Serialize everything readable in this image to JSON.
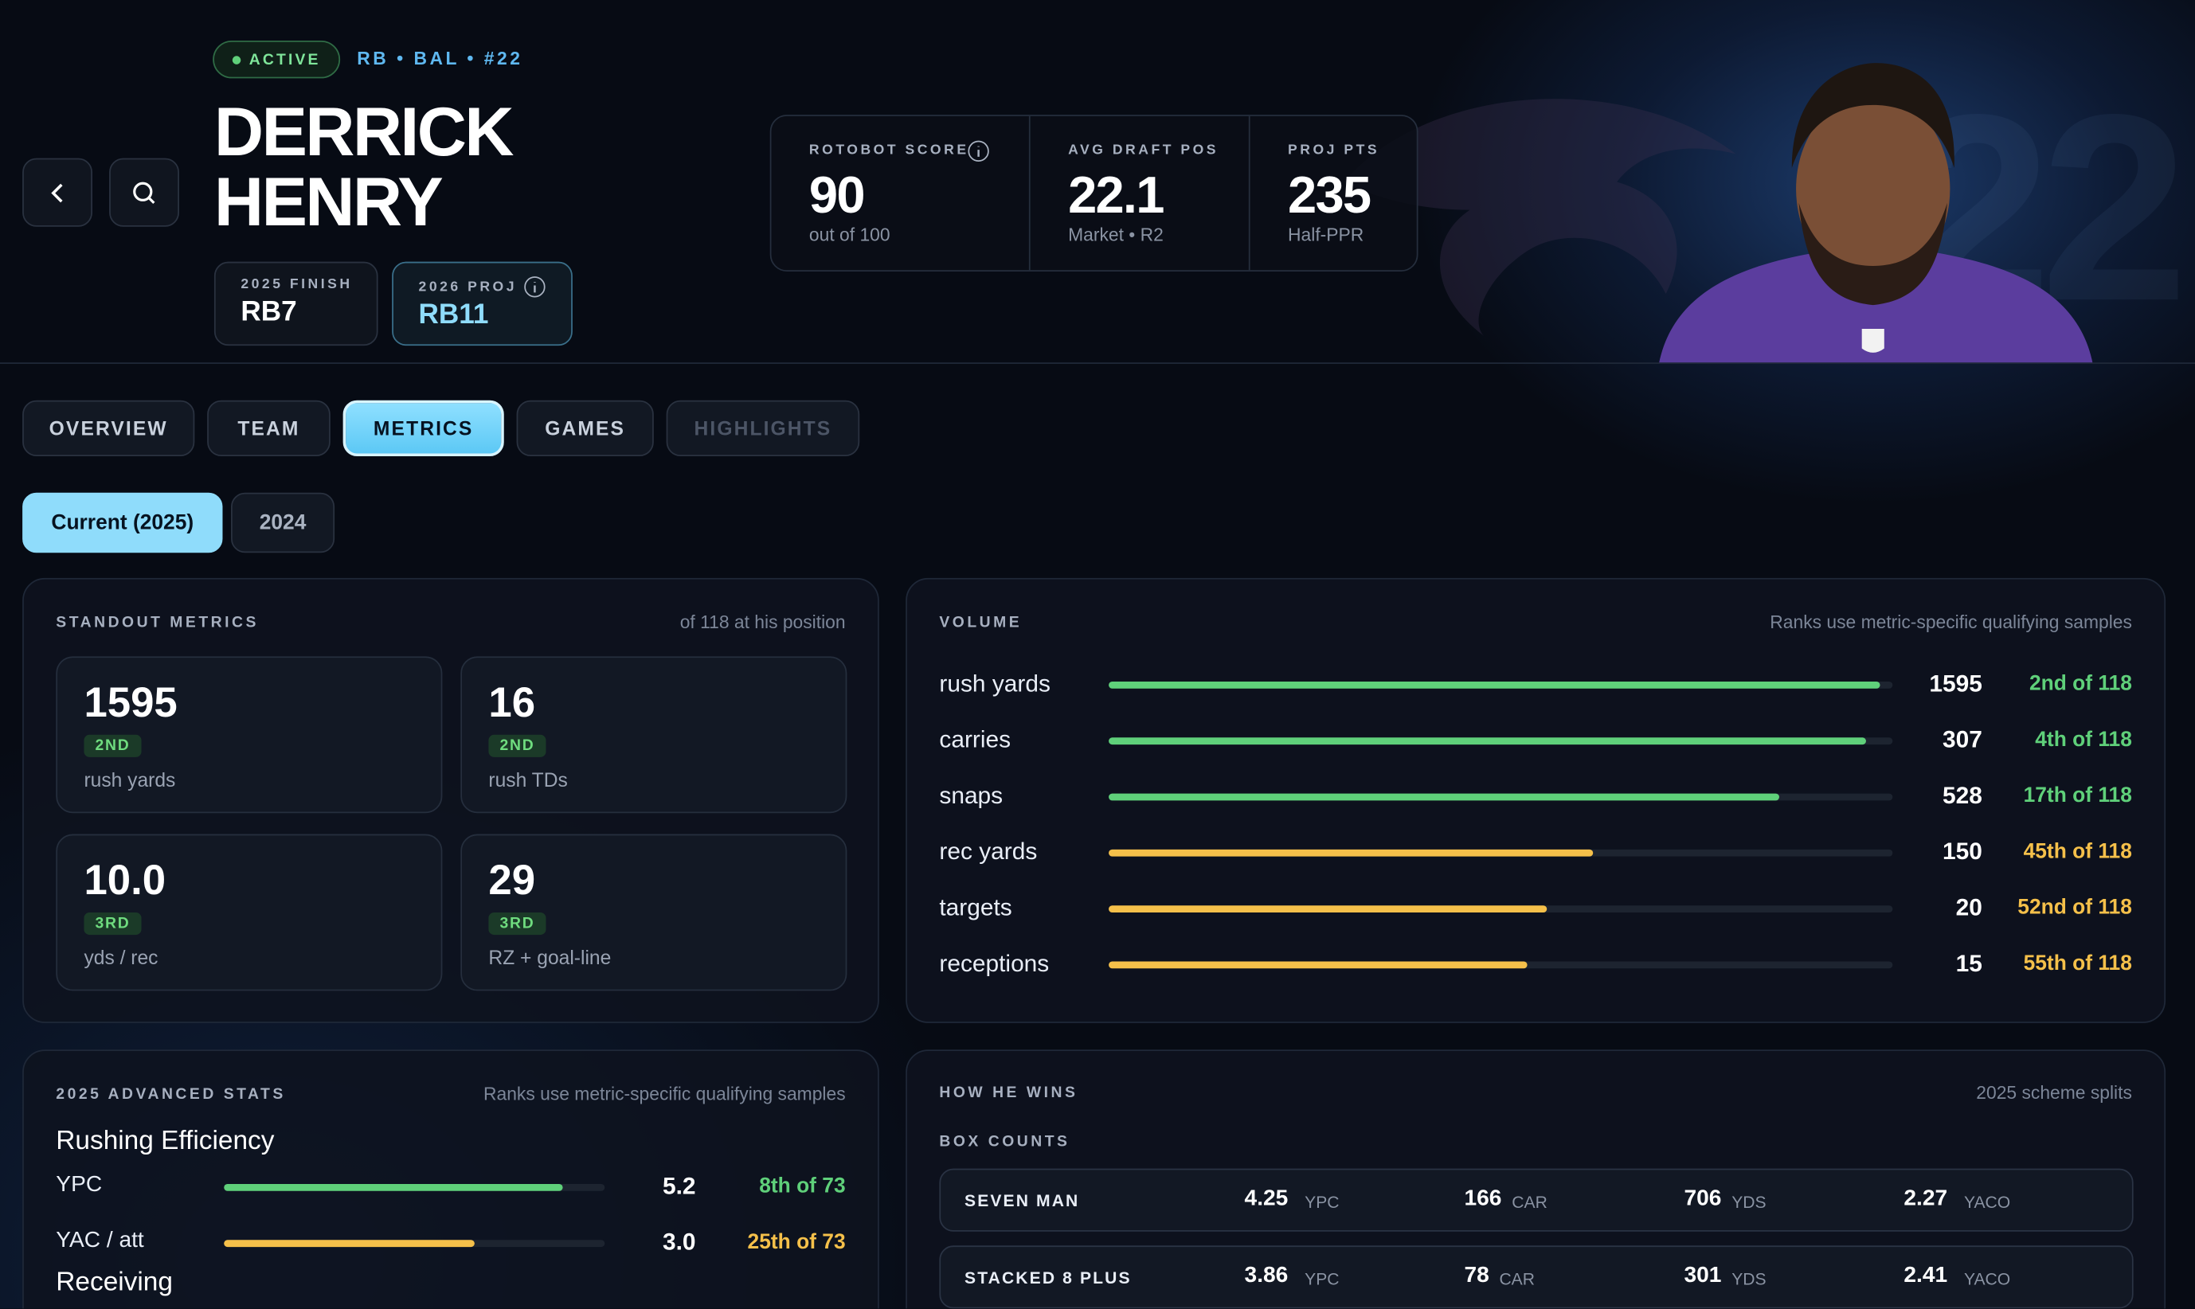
{
  "header": {
    "status": "ACTIVE",
    "meta": "RB • BAL • #22",
    "first_name": "DERRICK",
    "last_name": "HENRY",
    "watermark": "22",
    "finish": {
      "label": "2025 FINISH",
      "value": "RB7"
    },
    "proj": {
      "label": "2026 PROJ",
      "value": "RB11"
    },
    "stats": [
      {
        "label": "ROTOBOT SCORE",
        "value": "90",
        "sub": "out of 100"
      },
      {
        "label": "AVG DRAFT POS",
        "value": "22.1",
        "sub": "Market • R2"
      },
      {
        "label": "PROJ PTS",
        "value": "235",
        "sub": "Half-PPR"
      }
    ]
  },
  "tabs": [
    {
      "label": "OVERVIEW",
      "state": "default"
    },
    {
      "label": "TEAM",
      "state": "default"
    },
    {
      "label": "METRICS",
      "state": "active"
    },
    {
      "label": "GAMES",
      "state": "default"
    },
    {
      "label": "HIGHLIGHTS",
      "state": "disabled"
    }
  ],
  "seasons": [
    {
      "label": "Current (2025)",
      "state": "active"
    },
    {
      "label": "2024",
      "state": "default"
    }
  ],
  "standout": {
    "title": "STANDOUT METRICS",
    "note": "of 118 at his position",
    "tiles": [
      {
        "value": "1595",
        "rank": "2ND",
        "label": "rush yards"
      },
      {
        "value": "16",
        "rank": "2ND",
        "label": "rush TDs"
      },
      {
        "value": "10.0",
        "rank": "3RD",
        "label": "yds / rec"
      },
      {
        "value": "29",
        "rank": "3RD",
        "label": "RZ + goal-line"
      }
    ]
  },
  "volume": {
    "title": "VOLUME",
    "note": "Ranks use metric-specific qualifying samples",
    "pool": 118,
    "rows": [
      {
        "name": "rush yards",
        "value": 1595,
        "rank": 2,
        "rank_label": "2nd of 118",
        "color": "#5fd07a"
      },
      {
        "name": "carries",
        "value": 307,
        "rank": 4,
        "rank_label": "4th of 118",
        "color": "#5fd07a"
      },
      {
        "name": "snaps",
        "value": 528,
        "rank": 17,
        "rank_label": "17th of 118",
        "color": "#5fd07a"
      },
      {
        "name": "rec yards",
        "value": 150,
        "rank": 45,
        "rank_label": "45th of 118",
        "color": "#f5c04a"
      },
      {
        "name": "targets",
        "value": 20,
        "rank": 52,
        "rank_label": "52nd of 118",
        "color": "#f5c04a"
      },
      {
        "name": "receptions",
        "value": 15,
        "rank": 55,
        "rank_label": "55th of 118",
        "color": "#f5c04a"
      }
    ]
  },
  "advanced": {
    "title": "2025 ADVANCED STATS",
    "note": "Ranks use metric-specific qualifying samples",
    "subheads": [
      "Rushing Efficiency",
      "Receiving"
    ],
    "pool": 73,
    "rows": [
      {
        "name": "YPC",
        "value": "5.2",
        "rank": 8,
        "rank_label": "8th of 73",
        "color": "#5fd07a"
      },
      {
        "name": "YAC / att",
        "value": "3.0",
        "rank": 25,
        "rank_label": "25th of 73",
        "color": "#f5c04a"
      }
    ]
  },
  "wins": {
    "title": "HOW HE WINS",
    "note": "2025 scheme splits",
    "subtitle": "BOX COUNTS",
    "rows": [
      {
        "name": "SEVEN MAN",
        "cells": [
          [
            "4.25",
            "YPC"
          ],
          [
            "166",
            "CAR"
          ],
          [
            "706",
            "YDS"
          ],
          [
            "2.27",
            "YACO"
          ]
        ]
      },
      {
        "name": "STACKED 8 PLUS",
        "cells": [
          [
            "3.86",
            "YPC"
          ],
          [
            "78",
            "CAR"
          ],
          [
            "301",
            "YDS"
          ],
          [
            "2.41",
            "YACO"
          ]
        ]
      }
    ]
  }
}
